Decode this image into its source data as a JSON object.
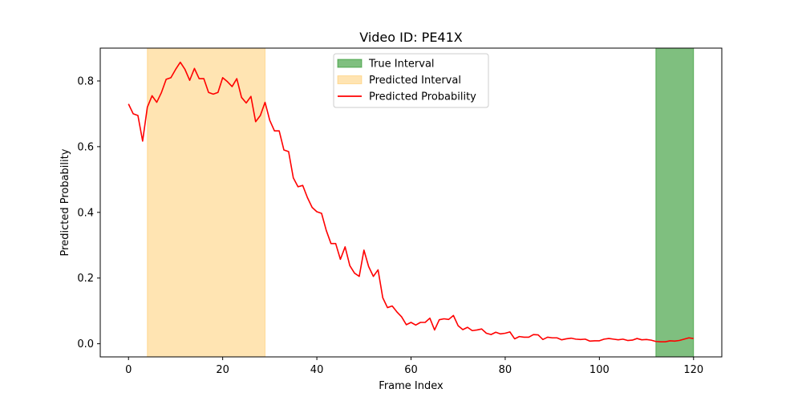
{
  "chart_data": {
    "type": "line",
    "title": "Video ID: PE41X",
    "xlabel": "Frame Index",
    "ylabel": "Predicted Probability",
    "xlim": [
      -6,
      126
    ],
    "ylim": [
      -0.04,
      0.9
    ],
    "xticks": [
      0,
      20,
      40,
      60,
      80,
      100,
      120
    ],
    "yticks": [
      0.0,
      0.2,
      0.4,
      0.6,
      0.8
    ],
    "grid": false,
    "legend_position": "top-center",
    "colors": {
      "true_interval": "#008000",
      "predicted_interval": "#ffa500",
      "probability_line": "#ff0000"
    },
    "intervals": [
      {
        "name": "True Interval",
        "start": 112,
        "end": 120,
        "color": "#008000",
        "opacity": 0.5
      },
      {
        "name": "Predicted Interval",
        "start": 4,
        "end": 29,
        "color": "#ffa500",
        "opacity": 0.3
      }
    ],
    "series": [
      {
        "name": "Predicted Probability",
        "color": "#ff0000",
        "x": [
          0,
          1,
          2,
          3,
          4,
          5,
          6,
          7,
          8,
          9,
          10,
          11,
          12,
          13,
          14,
          15,
          16,
          17,
          18,
          19,
          20,
          21,
          22,
          23,
          24,
          25,
          26,
          27,
          28,
          29,
          30,
          31,
          32,
          33,
          34,
          35,
          36,
          37,
          38,
          39,
          40,
          41,
          42,
          43,
          44,
          45,
          46,
          47,
          48,
          49,
          50,
          51,
          52,
          53,
          54,
          55,
          56,
          57,
          58,
          59,
          60,
          61,
          62,
          63,
          64,
          65,
          66,
          67,
          68,
          69,
          70,
          71,
          72,
          73,
          74,
          75,
          76,
          77,
          78,
          79,
          80,
          81,
          82,
          83,
          84,
          85,
          86,
          87,
          88,
          89,
          90,
          91,
          92,
          93,
          94,
          95,
          96,
          97,
          98,
          99,
          100,
          101,
          102,
          103,
          104,
          105,
          106,
          107,
          108,
          109,
          110,
          111,
          112,
          113,
          114,
          115,
          116,
          117,
          118,
          119,
          120
        ],
        "y": [
          0.73,
          0.7,
          0.695,
          0.617,
          0.72,
          0.755,
          0.735,
          0.765,
          0.805,
          0.81,
          0.835,
          0.857,
          0.835,
          0.802,
          0.838,
          0.807,
          0.807,
          0.765,
          0.76,
          0.765,
          0.81,
          0.798,
          0.783,
          0.807,
          0.75,
          0.733,
          0.753,
          0.676,
          0.695,
          0.735,
          0.68,
          0.648,
          0.648,
          0.59,
          0.585,
          0.505,
          0.478,
          0.482,
          0.445,
          0.415,
          0.402,
          0.397,
          0.345,
          0.305,
          0.305,
          0.257,
          0.295,
          0.238,
          0.215,
          0.205,
          0.285,
          0.235,
          0.205,
          0.225,
          0.14,
          0.11,
          0.115,
          0.097,
          0.082,
          0.058,
          0.065,
          0.057,
          0.065,
          0.065,
          0.078,
          0.042,
          0.073,
          0.076,
          0.074,
          0.086,
          0.055,
          0.043,
          0.05,
          0.04,
          0.042,
          0.045,
          0.032,
          0.028,
          0.035,
          0.03,
          0.032,
          0.036,
          0.015,
          0.022,
          0.02,
          0.02,
          0.028,
          0.027,
          0.013,
          0.02,
          0.018,
          0.018,
          0.012,
          0.015,
          0.017,
          0.014,
          0.013,
          0.014,
          0.008,
          0.009,
          0.009,
          0.014,
          0.016,
          0.014,
          0.012,
          0.014,
          0.01,
          0.011,
          0.016,
          0.012,
          0.013,
          0.011,
          0.007,
          0.006,
          0.006,
          0.009,
          0.008,
          0.01,
          0.014,
          0.018,
          0.016
        ]
      }
    ]
  }
}
